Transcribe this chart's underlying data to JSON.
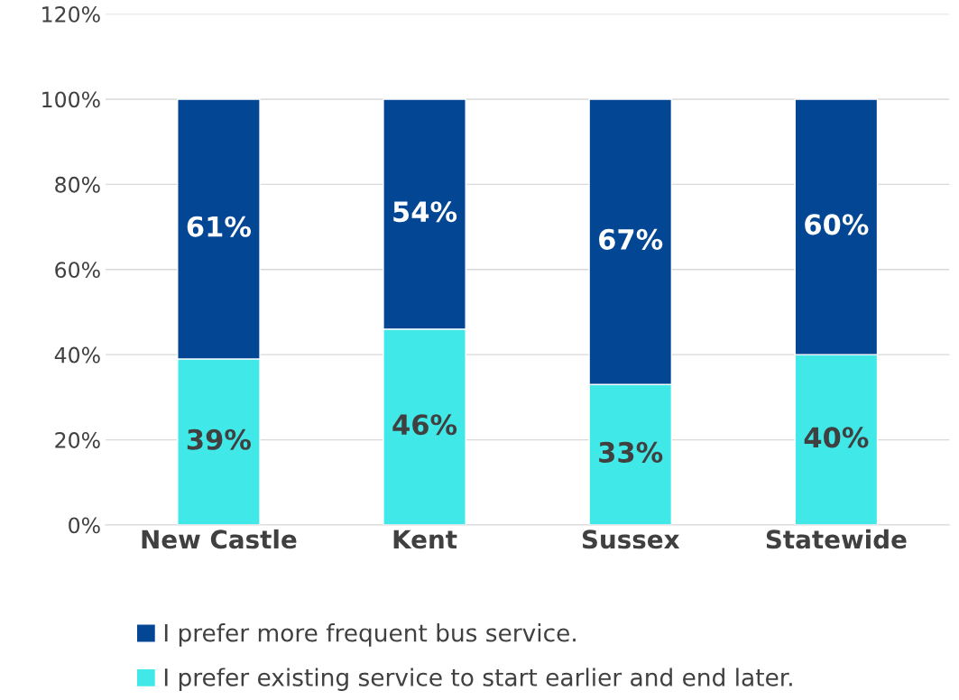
{
  "chart_data": {
    "type": "bar",
    "stacked": true,
    "categories": [
      "New Castle",
      "Kent",
      "Sussex",
      "Statewide"
    ],
    "series": [
      {
        "name": "I prefer existing service to start earlier and end later.",
        "color": "#40e8e8",
        "values": [
          39,
          46,
          33,
          40
        ],
        "value_labels": [
          "39%",
          "46%",
          "33%",
          "40%"
        ]
      },
      {
        "name": "I prefer more frequent bus service.",
        "color": "#034694",
        "values": [
          61,
          54,
          67,
          60
        ],
        "value_labels": [
          "61%",
          "54%",
          "67%",
          "60%"
        ]
      }
    ],
    "ylim": [
      0,
      120
    ],
    "yticks": [
      {
        "value": 0,
        "label": "0%"
      },
      {
        "value": 20,
        "label": "20%"
      },
      {
        "value": 40,
        "label": "40%"
      },
      {
        "value": 60,
        "label": "60%"
      },
      {
        "value": 80,
        "label": "80%"
      },
      {
        "value": 100,
        "label": "100%"
      },
      {
        "value": 120,
        "label": "120%"
      }
    ],
    "grid": "y",
    "legend": "bottom"
  }
}
